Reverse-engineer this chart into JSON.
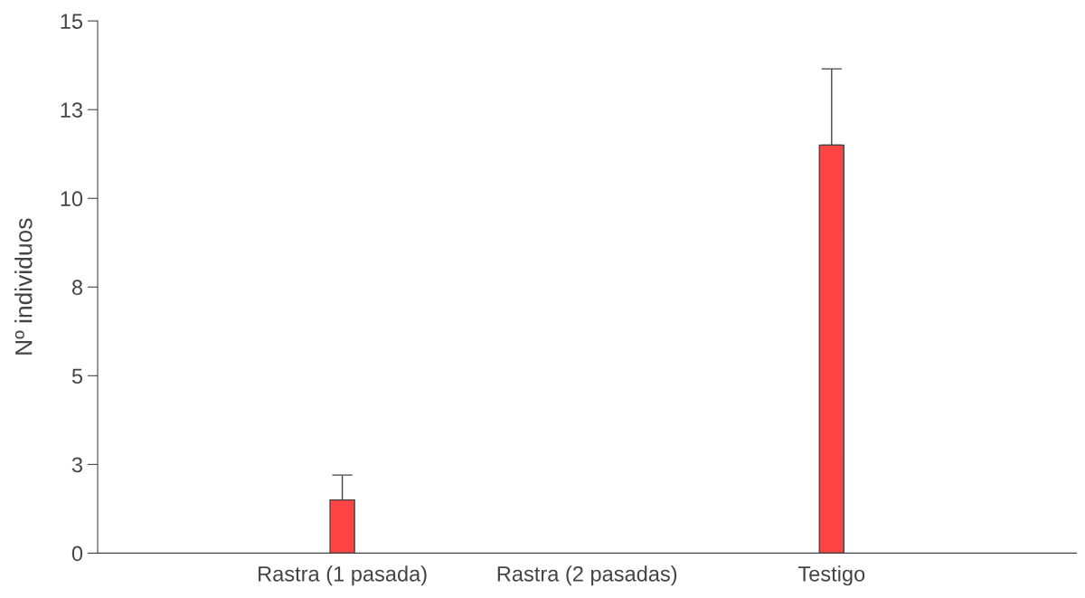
{
  "chart_data": {
    "type": "bar",
    "ylabel": "Nº individuos",
    "categories": [
      "Rastra (1 pasada)",
      "Rastra (2 pasadas)",
      "Testigo"
    ],
    "values": [
      1.5,
      0,
      11.5
    ],
    "errors": [
      [
        1.5,
        2.2
      ],
      null,
      [
        11.5,
        13.65
      ]
    ],
    "color": "#ff4444",
    "ylim": [
      0,
      15
    ],
    "yticks": [
      0,
      {
        "value": 2.5,
        "label": "3"
      },
      5,
      {
        "value": 7.5,
        "label": "8"
      },
      10,
      {
        "value": 12.5,
        "label": "13"
      },
      15
    ],
    "grid": false
  }
}
